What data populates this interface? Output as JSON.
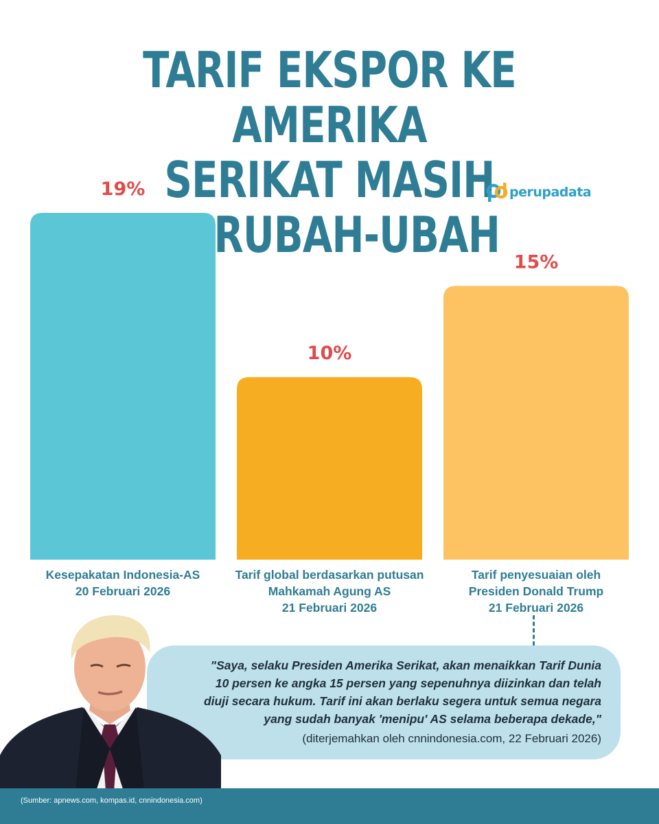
{
  "header": {
    "title_line1": "TARIF EKSPOR KE AMERIKA",
    "title_line2": "SERIKAT MASIH BERUBAH-UBAH"
  },
  "logo": {
    "text": "perupadata"
  },
  "chart_data": {
    "type": "bar",
    "categories": [
      [
        "Kesepakatan Indonesia-AS",
        "20 Februari 2026"
      ],
      [
        "Tarif global berdasarkan putusan",
        "Mahkamah Agung AS",
        "21 Februari 2026"
      ],
      [
        "Tarif penyesuaian oleh",
        "Presiden Donald Trump",
        "21 Februari 2026"
      ]
    ],
    "values": [
      19,
      10,
      15
    ],
    "value_labels": [
      "19%",
      "10%",
      "15%"
    ],
    "colors": [
      "#5bc6d6",
      "#f6ad21",
      "#fdc261"
    ],
    "value_label_color": "#e24b4b",
    "ylim": [
      0,
      19
    ],
    "grid": false
  },
  "quote": {
    "text": "\"Saya, selaku Presiden Amerika Serikat, akan menaikkan Tarif Dunia 10 persen ke angka 15 persen yang sepenuhnya diizinkan dan telah diuji secara hukum. Tarif ini akan berlaku segera untuk semua negara yang sudah banyak 'menipu' AS selama beberapa dekade,\"",
    "source": "(diterjemahkan oleh cnnindonesia.com, 22 Februari 2026)"
  },
  "footer": {
    "source": "(Sumber: apnews.com, kompas.id, cnnindonesia.com)"
  },
  "colors": {
    "brand": "#2e7d95",
    "quote_bg": "#bde0ea",
    "accent_red": "#e24b4b"
  }
}
